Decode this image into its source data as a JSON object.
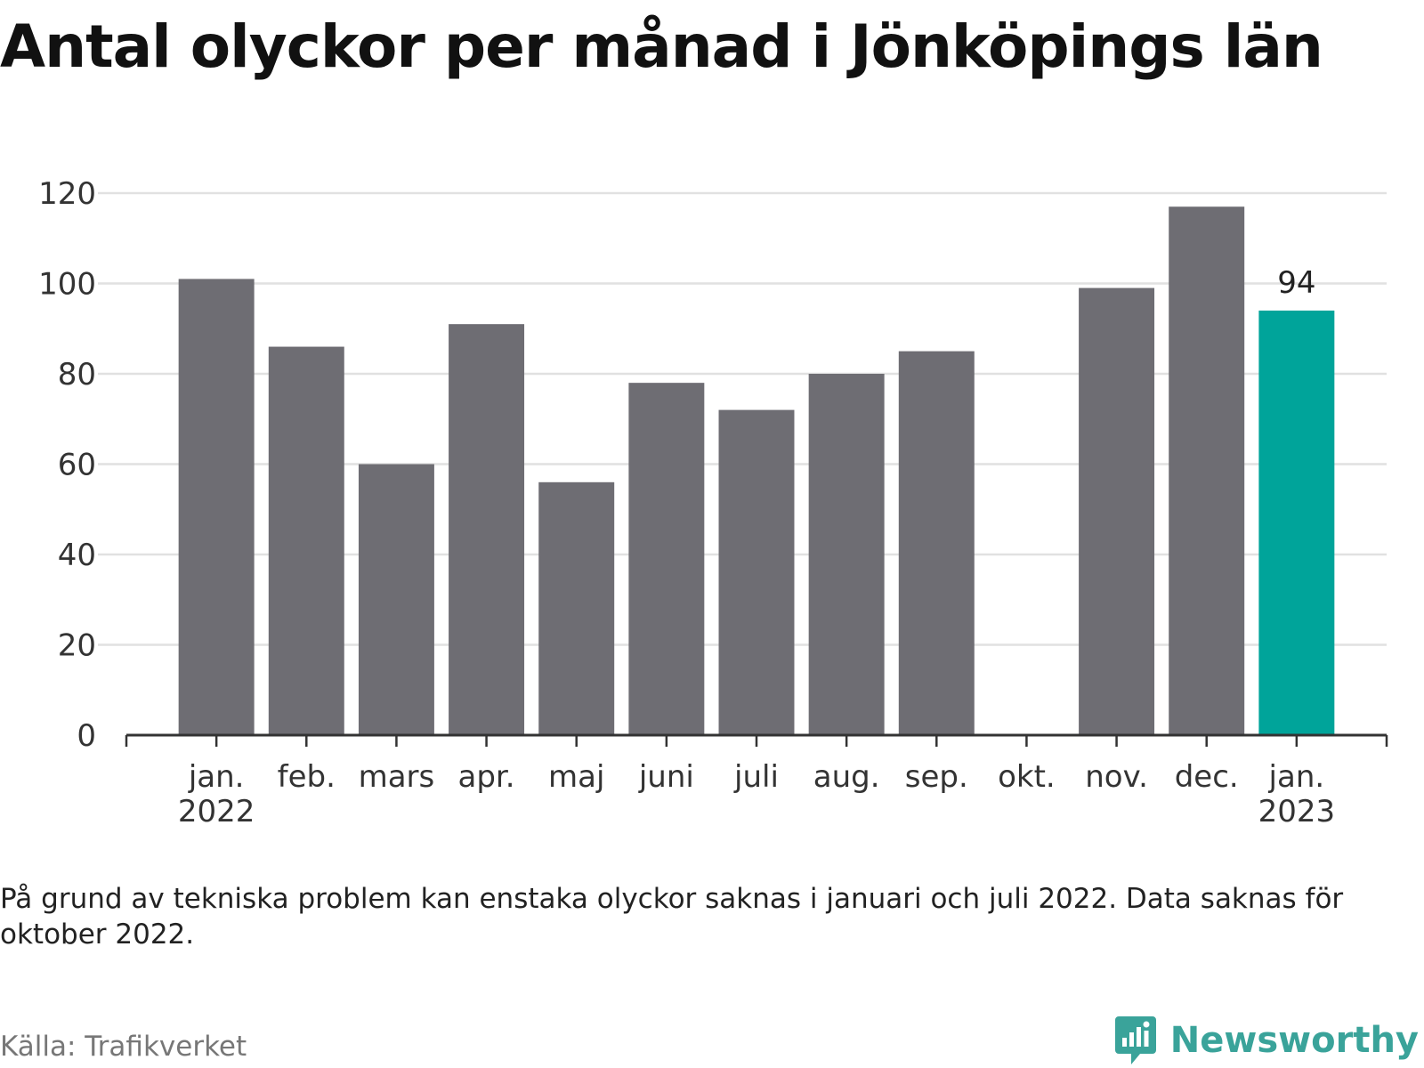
{
  "chart_data": {
    "type": "bar",
    "title": "Antal olyckor per månad i Jönköpings län",
    "categories": [
      [
        "jan.",
        "2022"
      ],
      [
        "feb."
      ],
      [
        "mars"
      ],
      [
        "apr."
      ],
      [
        "maj"
      ],
      [
        "juni"
      ],
      [
        "juli"
      ],
      [
        "aug."
      ],
      [
        "sep."
      ],
      [
        "okt."
      ],
      [
        "nov."
      ],
      [
        "dec."
      ],
      [
        "jan.",
        "2023"
      ]
    ],
    "values": [
      101,
      86,
      60,
      91,
      56,
      78,
      72,
      80,
      85,
      null,
      99,
      117,
      94
    ],
    "highlight_index": 12,
    "highlight_label": "94",
    "ylim": [
      0,
      120
    ],
    "yticks": [
      "0",
      "20",
      "40",
      "60",
      "80",
      "100",
      "120"
    ],
    "xlabel": "",
    "ylabel": "",
    "grid": true,
    "colors": {
      "bar": "#6e6d73",
      "highlight": "#00a49a",
      "grid": "#e1e1e1",
      "axis": "#333333"
    },
    "note": "På grund av tekniska problem kan enstaka olyckor saknas i januari och juli 2022. Data saknas för oktober 2022.",
    "source": "Källa: Trafikverket"
  },
  "brand": {
    "name": "Newsworthy",
    "icon": "newsworthy-logo-icon",
    "color": "#3aa39a"
  }
}
